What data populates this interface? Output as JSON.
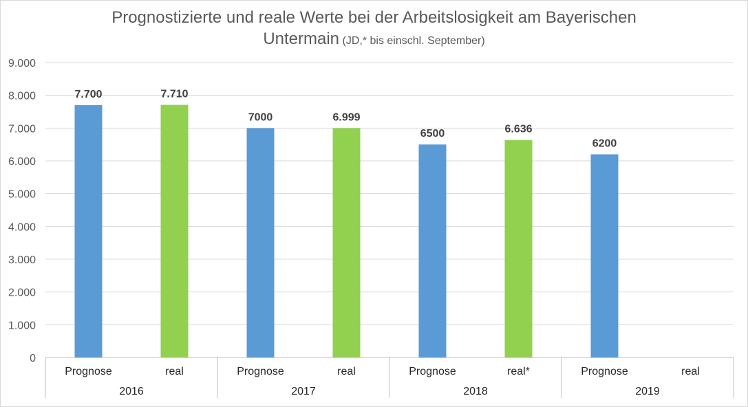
{
  "chart_data": {
    "type": "bar",
    "title": "Prognostizierte und reale Werte bei der Arbeitslosigkeit am Bayerischen",
    "title_line2": "Untermain",
    "subtitle": "(JD,* bis einschl. September)",
    "ylim": [
      0,
      9000
    ],
    "y_ticks": [
      "0",
      "1.000",
      "2.000",
      "3.000",
      "4.000",
      "5.000",
      "6.000",
      "7.000",
      "8.000",
      "9.000"
    ],
    "grid": true,
    "groups": [
      {
        "year": "2016",
        "bars": [
          {
            "label": "Prognose",
            "value": 7700,
            "data_label": "7.700",
            "series": "prognose"
          },
          {
            "label": "real",
            "value": 7710,
            "data_label": "7.710",
            "series": "real"
          }
        ]
      },
      {
        "year": "2017",
        "bars": [
          {
            "label": "Prognose",
            "value": 7000,
            "data_label": "7000",
            "series": "prognose"
          },
          {
            "label": "real",
            "value": 6999,
            "data_label": "6.999",
            "series": "real"
          }
        ]
      },
      {
        "year": "2018",
        "bars": [
          {
            "label": "Prognose",
            "value": 6500,
            "data_label": "6500",
            "series": "prognose"
          },
          {
            "label": "real*",
            "value": 6636,
            "data_label": "6.636",
            "series": "real"
          }
        ]
      },
      {
        "year": "2019",
        "bars": [
          {
            "label": "Prognose",
            "value": 6200,
            "data_label": "6200",
            "series": "prognose"
          },
          {
            "label": "real",
            "value": null,
            "data_label": "",
            "series": "real"
          }
        ]
      }
    ],
    "colors": {
      "prognose": "#5b9bd5",
      "real": "#92d050",
      "grid": "#d9d9d9",
      "axis": "#bfbfbf"
    }
  }
}
